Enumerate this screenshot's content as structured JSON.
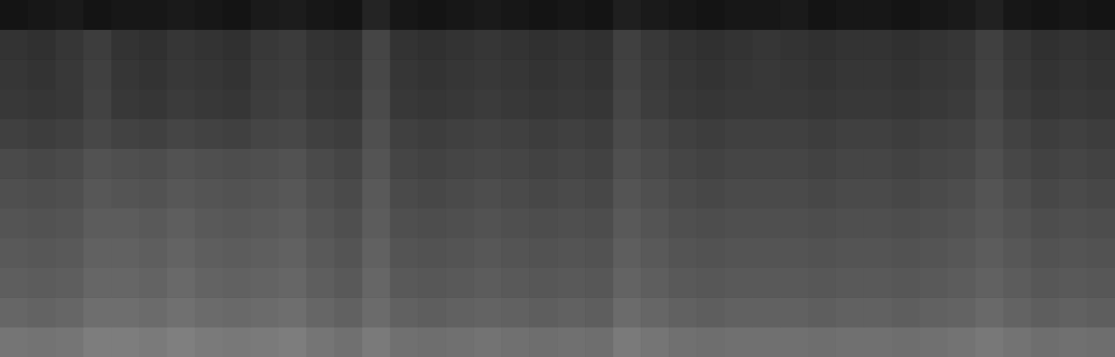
{
  "chart_data": {
    "type": "heatmap",
    "tick_labels": false,
    "grid": false,
    "cells": [
      [
        8,
        9,
        10,
        8,
        9,
        9,
        10,
        9,
        8,
        10,
        11,
        9,
        8,
        14,
        9,
        8,
        9,
        10,
        9,
        8,
        9,
        8,
        12,
        10,
        9,
        8,
        9,
        9,
        10,
        8,
        9,
        9,
        8,
        9,
        10,
        13,
        9,
        8,
        9,
        8
      ],
      [
        20,
        19,
        21,
        24,
        20,
        19,
        21,
        20,
        19,
        22,
        23,
        20,
        19,
        27,
        20,
        19,
        20,
        21,
        20,
        19,
        20,
        19,
        25,
        22,
        20,
        19,
        20,
        21,
        20,
        19,
        20,
        20,
        19,
        20,
        21,
        25,
        21,
        19,
        20,
        19
      ],
      [
        21,
        20,
        22,
        25,
        21,
        20,
        22,
        21,
        20,
        23,
        24,
        21,
        20,
        28,
        21,
        20,
        21,
        22,
        21,
        20,
        21,
        20,
        26,
        23,
        21,
        20,
        21,
        22,
        21,
        20,
        21,
        21,
        20,
        21,
        22,
        26,
        22,
        20,
        21,
        20
      ],
      [
        22,
        21,
        22,
        26,
        22,
        21,
        23,
        22,
        21,
        24,
        25,
        22,
        21,
        29,
        22,
        21,
        22,
        23,
        22,
        21,
        22,
        21,
        27,
        24,
        22,
        21,
        22,
        22,
        22,
        21,
        22,
        22,
        21,
        22,
        23,
        27,
        23,
        21,
        22,
        21
      ],
      [
        25,
        24,
        25,
        28,
        26,
        25,
        27,
        26,
        25,
        27,
        28,
        25,
        24,
        31,
        25,
        24,
        25,
        26,
        25,
        24,
        25,
        24,
        29,
        27,
        25,
        24,
        25,
        25,
        25,
        24,
        25,
        25,
        24,
        25,
        26,
        29,
        26,
        24,
        25,
        24
      ],
      [
        29,
        28,
        29,
        32,
        31,
        30,
        32,
        31,
        30,
        31,
        32,
        29,
        27,
        33,
        27,
        26,
        27,
        28,
        27,
        26,
        27,
        26,
        31,
        29,
        27,
        26,
        27,
        27,
        27,
        26,
        27,
        27,
        26,
        27,
        28,
        31,
        28,
        26,
        27,
        26
      ],
      [
        31,
        30,
        31,
        34,
        33,
        32,
        34,
        33,
        32,
        33,
        34,
        31,
        29,
        35,
        29,
        28,
        29,
        30,
        29,
        28,
        29,
        28,
        33,
        31,
        29,
        28,
        29,
        29,
        29,
        28,
        29,
        29,
        28,
        29,
        30,
        33,
        30,
        28,
        29,
        28
      ],
      [
        33,
        32,
        33,
        36,
        36,
        35,
        37,
        35,
        34,
        35,
        36,
        33,
        31,
        36,
        31,
        30,
        31,
        32,
        31,
        30,
        31,
        30,
        35,
        33,
        31,
        30,
        31,
        31,
        31,
        30,
        31,
        31,
        30,
        31,
        32,
        34,
        32,
        30,
        31,
        30
      ],
      [
        35,
        34,
        35,
        38,
        38,
        37,
        39,
        37,
        36,
        37,
        38,
        35,
        33,
        38,
        33,
        32,
        33,
        34,
        33,
        32,
        33,
        32,
        37,
        35,
        33,
        32,
        33,
        33,
        33,
        32,
        33,
        33,
        32,
        33,
        34,
        36,
        34,
        32,
        33,
        32
      ],
      [
        37,
        36,
        37,
        40,
        40,
        39,
        41,
        39,
        38,
        39,
        40,
        37,
        35,
        40,
        35,
        34,
        35,
        36,
        35,
        34,
        35,
        34,
        39,
        37,
        35,
        34,
        35,
        35,
        35,
        34,
        35,
        35,
        34,
        35,
        36,
        38,
        36,
        34,
        35,
        34
      ],
      [
        40,
        39,
        40,
        43,
        43,
        42,
        44,
        42,
        41,
        42,
        43,
        40,
        38,
        42,
        38,
        37,
        38,
        39,
        38,
        37,
        38,
        37,
        42,
        40,
        38,
        37,
        38,
        38,
        38,
        37,
        38,
        38,
        37,
        38,
        39,
        41,
        39,
        37,
        38,
        37
      ],
      [
        46,
        45,
        46,
        49,
        49,
        48,
        50,
        48,
        47,
        48,
        49,
        46,
        44,
        48,
        44,
        43,
        44,
        45,
        44,
        43,
        44,
        43,
        48,
        46,
        44,
        43,
        44,
        44,
        44,
        43,
        44,
        44,
        43,
        44,
        45,
        47,
        45,
        43,
        44,
        43
      ]
    ]
  }
}
